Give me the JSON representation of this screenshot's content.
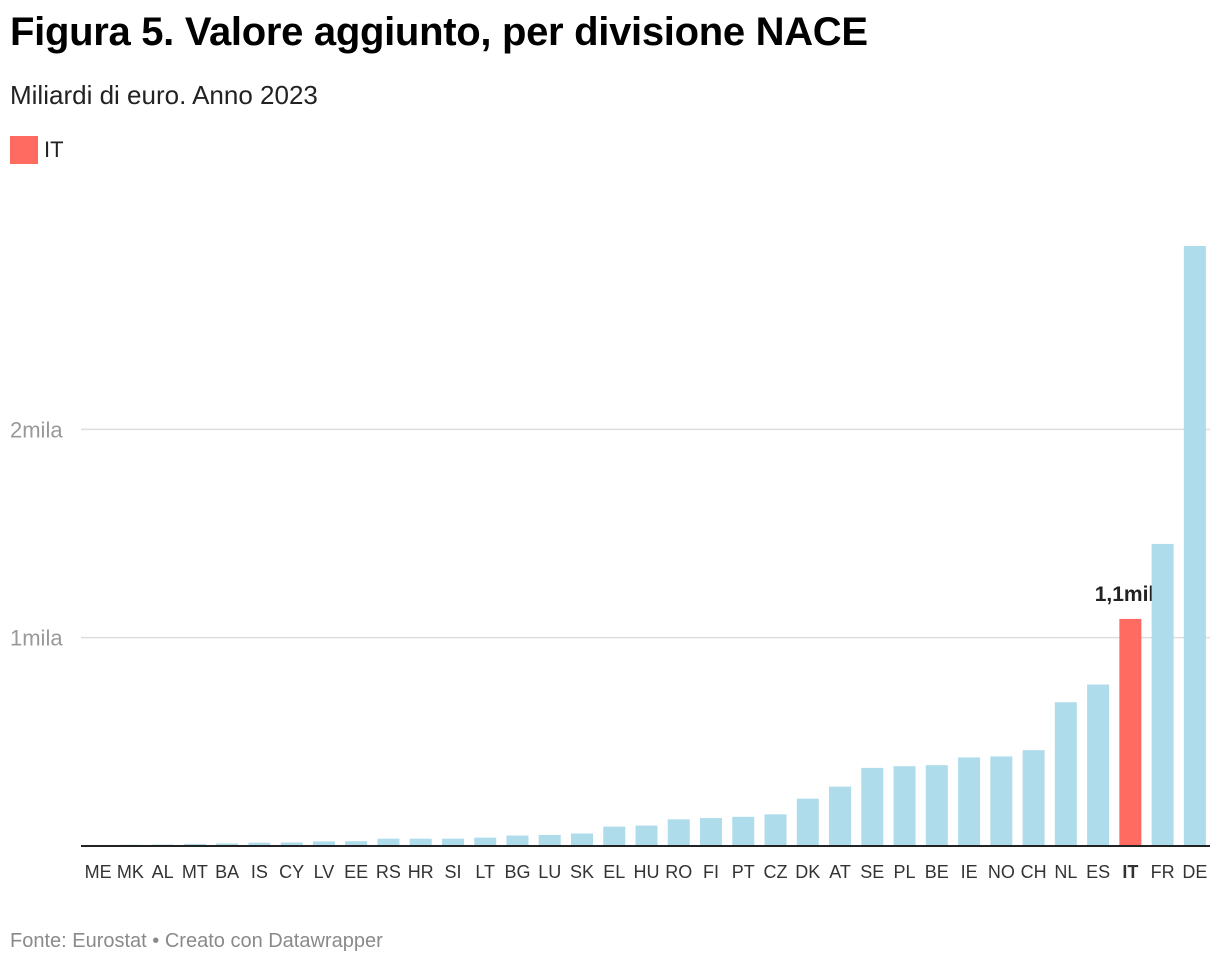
{
  "title": "Figura 5. Valore aggiunto, per divisione NACE",
  "subtitle": "Miliardi di euro. Anno 2023",
  "legend": {
    "label": "IT",
    "color": "#ff6b61"
  },
  "footer": "Fonte: Eurostat • Creato con Datawrapper",
  "colors": {
    "bar": "#aedcea",
    "highlight": "#ff6b61",
    "grid": "#dddddd",
    "axis": "#222222",
    "ytick": "#999999"
  },
  "chart_data": {
    "type": "bar",
    "title": "Figura 5. Valore aggiunto, per divisione NACE",
    "xlabel": "",
    "ylabel": "Miliardi di euro",
    "ylim": [
      0,
      2880
    ],
    "yticks": [
      {
        "value": 1000,
        "label": "1mila"
      },
      {
        "value": 2000,
        "label": "2mila"
      }
    ],
    "grid": true,
    "highlight": "IT",
    "highlight_label": "1,1mila",
    "categories": [
      "ME",
      "MK",
      "AL",
      "MT",
      "BA",
      "IS",
      "CY",
      "LV",
      "EE",
      "RS",
      "HR",
      "SI",
      "LT",
      "BG",
      "LU",
      "SK",
      "EL",
      "HU",
      "RO",
      "FI",
      "PT",
      "CZ",
      "DK",
      "AT",
      "SE",
      "PL",
      "BE",
      "IE",
      "NO",
      "CH",
      "NL",
      "ES",
      "IT",
      "FR",
      "DE"
    ],
    "values": [
      5,
      6,
      7,
      10,
      12,
      16,
      17,
      22,
      23,
      35,
      35,
      35,
      40,
      50,
      53,
      60,
      93,
      98,
      128,
      134,
      140,
      152,
      227,
      285,
      375,
      383,
      388,
      425,
      430,
      460,
      690,
      775,
      1090,
      1450,
      2880
    ]
  }
}
